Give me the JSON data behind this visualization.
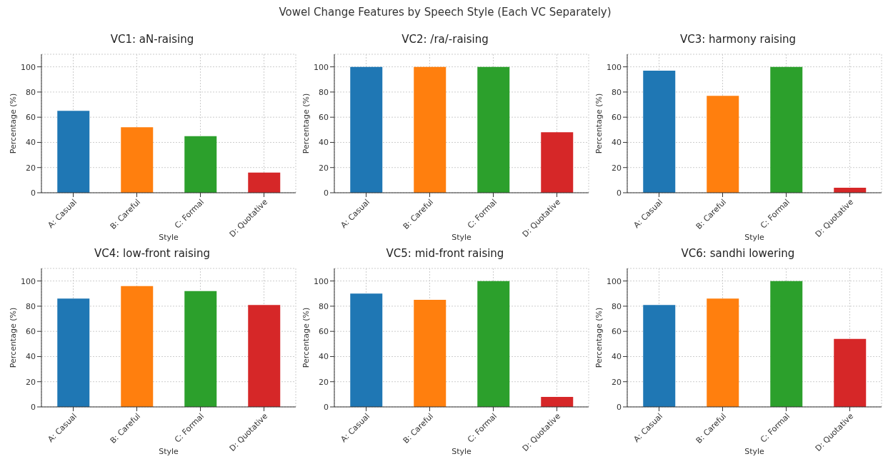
{
  "chart_data": [
    {
      "type": "other",
      "title": "Vowel Change Features by Speech Style (Each VC Separately)"
    },
    {
      "type": "bar",
      "title": "VC1: aN-raising",
      "xlabel": "Style",
      "ylabel": "Percentage (%)",
      "categories": [
        "A: Casual",
        "B: Careful",
        "C: Formal",
        "D: Quotative"
      ],
      "values": [
        65,
        52,
        45,
        16
      ],
      "colors": [
        "#1f77b4",
        "#ff7f0e",
        "#2ca02c",
        "#d62728"
      ],
      "ylim": [
        0,
        110
      ],
      "yticks": [
        0,
        20,
        40,
        60,
        80,
        100
      ],
      "grid": true
    },
    {
      "type": "bar",
      "title": "VC2: /ra/-raising",
      "xlabel": "Style",
      "ylabel": "Percentage (%)",
      "categories": [
        "A: Casual",
        "B: Careful",
        "C: Formal",
        "D: Quotative"
      ],
      "values": [
        100,
        100,
        100,
        48
      ],
      "colors": [
        "#1f77b4",
        "#ff7f0e",
        "#2ca02c",
        "#d62728"
      ],
      "ylim": [
        0,
        110
      ],
      "yticks": [
        0,
        20,
        40,
        60,
        80,
        100
      ],
      "grid": true
    },
    {
      "type": "bar",
      "title": "VC3: harmony raising",
      "xlabel": "Style",
      "ylabel": "Percentage (%)",
      "categories": [
        "A: Casual",
        "B: Careful",
        "C: Formal",
        "D: Quotative"
      ],
      "values": [
        97,
        77,
        100,
        4
      ],
      "colors": [
        "#1f77b4",
        "#ff7f0e",
        "#2ca02c",
        "#d62728"
      ],
      "ylim": [
        0,
        110
      ],
      "yticks": [
        0,
        20,
        40,
        60,
        80,
        100
      ],
      "grid": true
    },
    {
      "type": "bar",
      "title": "VC4: low-front raising",
      "xlabel": "Style",
      "ylabel": "Percentage (%)",
      "categories": [
        "A: Casual",
        "B: Careful",
        "C: Formal",
        "D: Quotative"
      ],
      "values": [
        86,
        96,
        92,
        81
      ],
      "colors": [
        "#1f77b4",
        "#ff7f0e",
        "#2ca02c",
        "#d62728"
      ],
      "ylim": [
        0,
        110
      ],
      "yticks": [
        0,
        20,
        40,
        60,
        80,
        100
      ],
      "grid": true
    },
    {
      "type": "bar",
      "title": "VC5: mid-front raising",
      "xlabel": "Style",
      "ylabel": "Percentage (%)",
      "categories": [
        "A: Casual",
        "B: Careful",
        "C: Formal",
        "D: Quotative"
      ],
      "values": [
        90,
        85,
        100,
        8
      ],
      "colors": [
        "#1f77b4",
        "#ff7f0e",
        "#2ca02c",
        "#d62728"
      ],
      "ylim": [
        0,
        110
      ],
      "yticks": [
        0,
        20,
        40,
        60,
        80,
        100
      ],
      "grid": true
    },
    {
      "type": "bar",
      "title": "VC6: sandhi lowering",
      "xlabel": "Style",
      "ylabel": "Percentage (%)",
      "categories": [
        "A: Casual",
        "B: Careful",
        "C: Formal",
        "D: Quotative"
      ],
      "values": [
        81,
        86,
        100,
        54
      ],
      "colors": [
        "#1f77b4",
        "#ff7f0e",
        "#2ca02c",
        "#d62728"
      ],
      "ylim": [
        0,
        110
      ],
      "yticks": [
        0,
        20,
        40,
        60,
        80,
        100
      ],
      "grid": true
    }
  ]
}
